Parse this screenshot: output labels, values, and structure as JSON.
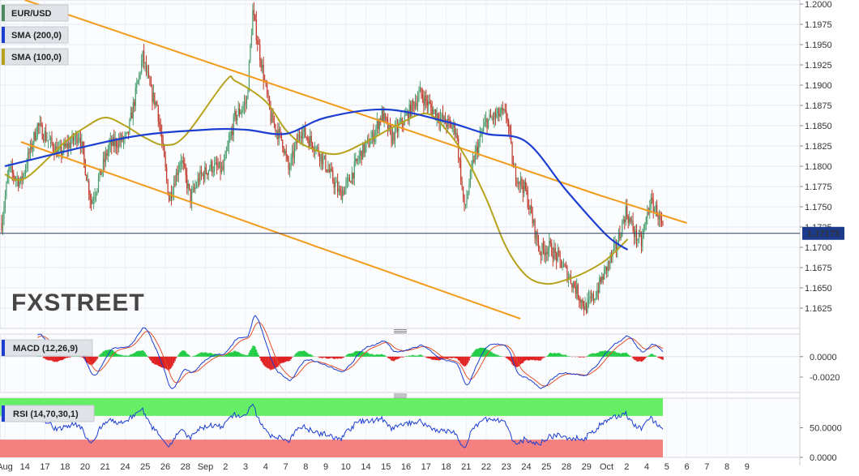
{
  "chart_data": {
    "type": "candlestick",
    "symbol": "EUR/USD",
    "watermark": "FXSTREET",
    "last_price": "1.17173",
    "colors": {
      "up": "#4a9e6e",
      "down": "#c0392b",
      "sma200": "#1c3fd1",
      "sma100": "#b5a21d",
      "channel": "#f29b1d",
      "macd_line": "#1c3fd1",
      "signal_line": "#e2502b",
      "hist_up": "#22cc44",
      "hist_down": "#e02020",
      "rsi": "#1c3fd1",
      "rsi_overbought": "#66ee66",
      "rsi_oversold": "#f48080"
    },
    "legends": [
      {
        "label": "EUR/USD",
        "color": "#4a8a5e"
      },
      {
        "label": "SMA (200,0)",
        "color": "#1c3fd1"
      },
      {
        "label": "SMA (100,0)",
        "color": "#b5a21d"
      }
    ],
    "price_axis": {
      "min": 1.16,
      "max": 1.2005,
      "ticks": [
        "1.2000",
        "1.1975",
        "1.1950",
        "1.1925",
        "1.1900",
        "1.1875",
        "1.1850",
        "1.1825",
        "1.1800",
        "1.1775",
        "1.1750",
        "1.1725",
        "1.1700",
        "1.1675",
        "1.1650",
        "1.1625"
      ]
    },
    "x_labels": [
      "Aug",
      "14",
      "17",
      "18",
      "20",
      "21",
      "24",
      "25",
      "26",
      "28",
      "Sep",
      "2",
      "3",
      "4",
      "7",
      "8",
      "9",
      "10",
      "14",
      "15",
      "16",
      "17",
      "18",
      "21",
      "22",
      "23",
      "24",
      "25",
      "28",
      "29",
      "Oct",
      "2",
      "4",
      "5",
      "6",
      "7",
      "8",
      "9"
    ],
    "close_anchors": [
      [
        0,
        1.173
      ],
      [
        6,
        1.1795
      ],
      [
        16,
        1.178
      ],
      [
        30,
        1.185
      ],
      [
        48,
        1.1815
      ],
      [
        65,
        1.184
      ],
      [
        75,
        1.1755
      ],
      [
        90,
        1.1825
      ],
      [
        105,
        1.1835
      ],
      [
        118,
        1.1935
      ],
      [
        125,
        1.189
      ],
      [
        130,
        1.1875
      ],
      [
        140,
        1.176
      ],
      [
        150,
        1.181
      ],
      [
        158,
        1.176
      ],
      [
        165,
        1.1785
      ],
      [
        175,
        1.18
      ],
      [
        185,
        1.1795
      ],
      [
        195,
        1.186
      ],
      [
        205,
        1.188
      ],
      [
        210,
        1.199
      ],
      [
        218,
        1.192
      ],
      [
        225,
        1.186
      ],
      [
        235,
        1.183
      ],
      [
        240,
        1.1795
      ],
      [
        250,
        1.1845
      ],
      [
        262,
        1.1825
      ],
      [
        270,
        1.1805
      ],
      [
        283,
        1.1765
      ],
      [
        290,
        1.178
      ],
      [
        300,
        1.1815
      ],
      [
        310,
        1.1835
      ],
      [
        318,
        1.1865
      ],
      [
        326,
        1.1835
      ],
      [
        340,
        1.1865
      ],
      [
        350,
        1.189
      ],
      [
        360,
        1.187
      ],
      [
        370,
        1.1855
      ],
      [
        380,
        1.1845
      ],
      [
        387,
        1.1745
      ],
      [
        395,
        1.181
      ],
      [
        405,
        1.1855
      ],
      [
        418,
        1.1865
      ],
      [
        423,
        1.186
      ],
      [
        428,
        1.1795
      ],
      [
        438,
        1.177
      ],
      [
        450,
        1.1695
      ],
      [
        458,
        1.17
      ],
      [
        466,
        1.1685
      ],
      [
        478,
        1.1655
      ],
      [
        488,
        1.1625
      ],
      [
        496,
        1.164
      ],
      [
        506,
        1.1675
      ],
      [
        515,
        1.1705
      ],
      [
        522,
        1.1745
      ],
      [
        530,
        1.1715
      ],
      [
        535,
        1.1705
      ],
      [
        542,
        1.1755
      ],
      [
        548,
        1.1745
      ],
      [
        553,
        1.172
      ]
    ],
    "channel_upper": [
      [
        1.0,
        1.2005
      ],
      [
        29.55,
        1.1765
      ],
      [
        34.0,
        1.173
      ]
    ],
    "channel_lower": [
      [
        0.8,
        1.183
      ],
      [
        25.7,
        1.1612
      ]
    ],
    "sma200": [
      [
        0,
        1.18
      ],
      [
        6,
        1.1835
      ],
      [
        10,
        1.1845
      ],
      [
        12,
        1.1845
      ],
      [
        14,
        1.184
      ],
      [
        16,
        1.186
      ],
      [
        19,
        1.187
      ],
      [
        22,
        1.1855
      ],
      [
        24,
        1.184
      ],
      [
        26,
        1.183
      ],
      [
        28,
        1.177
      ],
      [
        30,
        1.1715
      ],
      [
        31.05,
        1.1697
      ]
    ],
    "sma100": [
      [
        0,
        1.179
      ],
      [
        1,
        1.1785
      ],
      [
        3,
        1.183
      ],
      [
        4,
        1.1848
      ],
      [
        5,
        1.186
      ],
      [
        6,
        1.185
      ],
      [
        7,
        1.1835
      ],
      [
        8,
        1.1826
      ],
      [
        9,
        1.1838
      ],
      [
        11,
        1.1905
      ],
      [
        11.5,
        1.1905
      ],
      [
        13,
        1.188
      ],
      [
        14,
        1.1845
      ],
      [
        15,
        1.1825
      ],
      [
        16.5,
        1.1815
      ],
      [
        18,
        1.183
      ],
      [
        19.5,
        1.185
      ],
      [
        21,
        1.1865
      ],
      [
        22,
        1.1845
      ],
      [
        23,
        1.181
      ],
      [
        24,
        1.176
      ],
      [
        25,
        1.17
      ],
      [
        26,
        1.1665
      ],
      [
        27,
        1.1655
      ],
      [
        28,
        1.166
      ],
      [
        29,
        1.167
      ],
      [
        30,
        1.1685
      ],
      [
        31.05,
        1.171
      ]
    ],
    "macd": {
      "label": "MACD (12,26,9)",
      "min": -0.0035,
      "max": 0.0022,
      "ticks": [
        "0.0000",
        "-0.0020"
      ]
    },
    "rsi": {
      "label": "RSI (14,70,30,1)",
      "min": 0,
      "max": 100,
      "overbought": 70,
      "oversold": 30,
      "ticks": [
        "50.0000",
        "0.0000"
      ]
    }
  }
}
